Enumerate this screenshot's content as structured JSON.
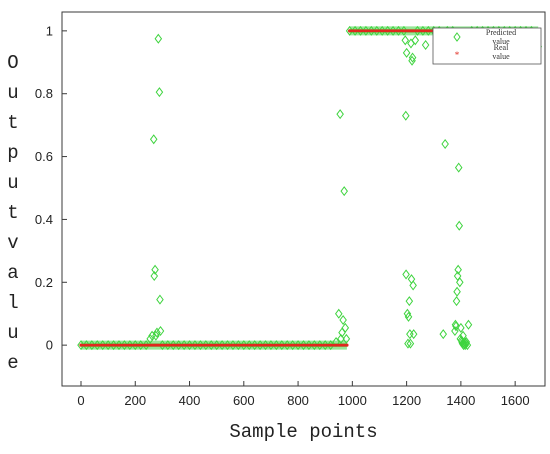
{
  "chart_data": {
    "type": "scatter",
    "xlabel": "Sample points",
    "ylabel": "Outputvalue",
    "xlim": [
      -70,
      1710
    ],
    "ylim": [
      -0.13,
      1.06
    ],
    "xticks": [
      0,
      200,
      400,
      600,
      800,
      1000,
      1200,
      1400,
      1600
    ],
    "yticks": [
      0,
      0.2,
      0.4,
      0.6,
      0.8,
      1
    ],
    "legend_position": "top-right",
    "series": [
      {
        "name": "Predicted value",
        "marker": "diamond",
        "color": "#3fd43f",
        "points": [
          [
            0,
            0
          ],
          [
            20,
            0
          ],
          [
            40,
            0
          ],
          [
            60,
            0
          ],
          [
            80,
            0
          ],
          [
            100,
            0
          ],
          [
            120,
            0
          ],
          [
            140,
            0
          ],
          [
            160,
            0
          ],
          [
            180,
            0
          ],
          [
            200,
            0
          ],
          [
            220,
            0
          ],
          [
            240,
            0
          ],
          [
            255,
            0.02
          ],
          [
            262,
            0.03
          ],
          [
            268,
            0.655
          ],
          [
            270,
            0.22
          ],
          [
            273,
            0.24
          ],
          [
            276,
            0.03
          ],
          [
            280,
            0.04
          ],
          [
            285,
            0.975
          ],
          [
            289,
            0.805
          ],
          [
            291,
            0.145
          ],
          [
            293,
            0.045
          ],
          [
            300,
            0
          ],
          [
            320,
            0
          ],
          [
            340,
            0
          ],
          [
            360,
            0
          ],
          [
            380,
            0
          ],
          [
            400,
            0
          ],
          [
            420,
            0
          ],
          [
            440,
            0
          ],
          [
            460,
            0
          ],
          [
            480,
            0
          ],
          [
            500,
            0
          ],
          [
            520,
            0
          ],
          [
            540,
            0
          ],
          [
            560,
            0
          ],
          [
            580,
            0
          ],
          [
            600,
            0
          ],
          [
            620,
            0
          ],
          [
            640,
            0
          ],
          [
            660,
            0
          ],
          [
            680,
            0
          ],
          [
            700,
            0
          ],
          [
            720,
            0
          ],
          [
            740,
            0
          ],
          [
            760,
            0
          ],
          [
            780,
            0
          ],
          [
            800,
            0
          ],
          [
            820,
            0
          ],
          [
            840,
            0
          ],
          [
            860,
            0
          ],
          [
            880,
            0
          ],
          [
            900,
            0
          ],
          [
            920,
            0
          ],
          [
            940,
            0.01
          ],
          [
            950,
            0.1
          ],
          [
            955,
            0.735
          ],
          [
            958,
            0.02
          ],
          [
            962,
            0.04
          ],
          [
            966,
            0.08
          ],
          [
            970,
            0.49
          ],
          [
            974,
            0.055
          ],
          [
            978,
            0.02
          ],
          [
            990,
            1
          ],
          [
            1010,
            1
          ],
          [
            1030,
            1
          ],
          [
            1050,
            1
          ],
          [
            1070,
            1
          ],
          [
            1090,
            1
          ],
          [
            1110,
            1
          ],
          [
            1130,
            1
          ],
          [
            1150,
            1
          ],
          [
            1170,
            1
          ],
          [
            1190,
            1
          ],
          [
            1195,
            0.97
          ],
          [
            1197,
            0.73
          ],
          [
            1198,
            0.225
          ],
          [
            1200,
            0.93
          ],
          [
            1203,
            0.1
          ],
          [
            1205,
            0.005
          ],
          [
            1207,
            0.09
          ],
          [
            1210,
            0.14
          ],
          [
            1212,
            0.035
          ],
          [
            1214,
            0.005
          ],
          [
            1216,
            0.96
          ],
          [
            1218,
            0.21
          ],
          [
            1220,
            0.905
          ],
          [
            1222,
            0.915
          ],
          [
            1224,
            0.19
          ],
          [
            1226,
            0.035
          ],
          [
            1232,
            0.97
          ],
          [
            1240,
            1
          ],
          [
            1260,
            1
          ],
          [
            1270,
            0.955
          ],
          [
            1280,
            1
          ],
          [
            1300,
            1
          ],
          [
            1310,
            0.96
          ],
          [
            1320,
            1
          ],
          [
            1335,
            0.035
          ],
          [
            1342,
            0.64
          ],
          [
            1350,
            1
          ],
          [
            1370,
            1
          ],
          [
            1378,
            0.045
          ],
          [
            1380,
            0.065
          ],
          [
            1382,
            0.06
          ],
          [
            1384,
            0.14
          ],
          [
            1386,
            0.17
          ],
          [
            1388,
            0.22
          ],
          [
            1390,
            0.24
          ],
          [
            1392,
            0.565
          ],
          [
            1394,
            0.38
          ],
          [
            1396,
            0.2
          ],
          [
            1398,
            0.02
          ],
          [
            1400,
            0.055
          ],
          [
            1402,
            0.015
          ],
          [
            1404,
            0.01
          ],
          [
            1406,
            0.005
          ],
          [
            1408,
            0.03
          ],
          [
            1410,
            0.0
          ],
          [
            1412,
            0.005
          ],
          [
            1414,
            0.01
          ],
          [
            1416,
            0.0
          ],
          [
            1418,
            0.005
          ],
          [
            1420,
            0.01
          ],
          [
            1424,
            0.0
          ],
          [
            1428,
            0.065
          ],
          [
            1440,
            1
          ],
          [
            1460,
            1
          ],
          [
            1480,
            1
          ],
          [
            1500,
            1
          ],
          [
            1520,
            1
          ],
          [
            1540,
            1
          ],
          [
            1560,
            1
          ],
          [
            1580,
            1
          ],
          [
            1600,
            1
          ],
          [
            1620,
            1
          ],
          [
            1640,
            1
          ],
          [
            1660,
            1
          ],
          [
            1672,
            0.99
          ],
          [
            1685,
            0.95
          ]
        ]
      },
      {
        "name": "Real value",
        "marker": "star",
        "color": "#e0281e",
        "points": [
          [
            0,
            0
          ],
          [
            980,
            0
          ],
          [
            990,
            1
          ],
          [
            1685,
            1
          ]
        ]
      }
    ]
  }
}
